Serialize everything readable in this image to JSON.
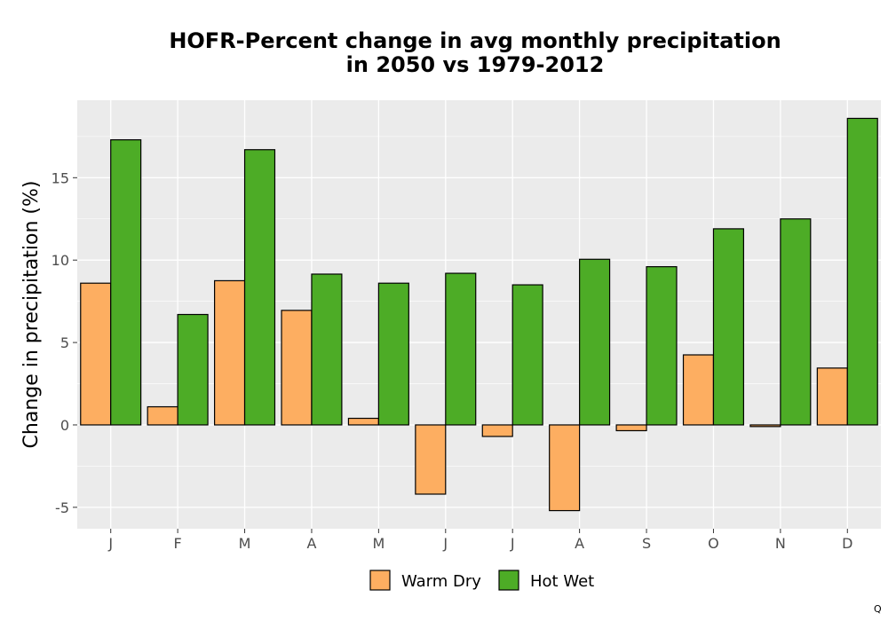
{
  "chart_data": {
    "type": "bar",
    "title": [
      "HOFR-Percent change in avg monthly precipitation",
      "in 2050 vs 1979-2012"
    ],
    "xlabel": "",
    "ylabel": "Change in precipitation (%)",
    "categories": [
      "J",
      "F",
      "M",
      "A",
      "M",
      "J",
      "J",
      "A",
      "S",
      "O",
      "N",
      "D"
    ],
    "series": [
      {
        "name": "Warm Dry",
        "color": "#FDAE61",
        "values": [
          8.6,
          1.1,
          8.75,
          6.95,
          0.4,
          -4.2,
          -0.7,
          -5.2,
          -0.35,
          4.25,
          -0.1,
          3.45
        ]
      },
      {
        "name": "Hot Wet",
        "color": "#4DAC26",
        "values": [
          17.3,
          6.7,
          16.7,
          9.15,
          8.6,
          9.2,
          8.5,
          10.05,
          9.6,
          11.9,
          12.5,
          18.6
        ]
      }
    ],
    "ylim": [
      -6.3,
      19.7
    ],
    "yticks": [
      -5,
      0,
      5,
      10,
      15
    ],
    "ytick_labels": [
      "-5",
      "0",
      "5",
      "10",
      "15"
    ],
    "grid": true,
    "panel_background": "#EBEBEB",
    "legend_position": "bottom"
  },
  "corner_mark": "Q"
}
